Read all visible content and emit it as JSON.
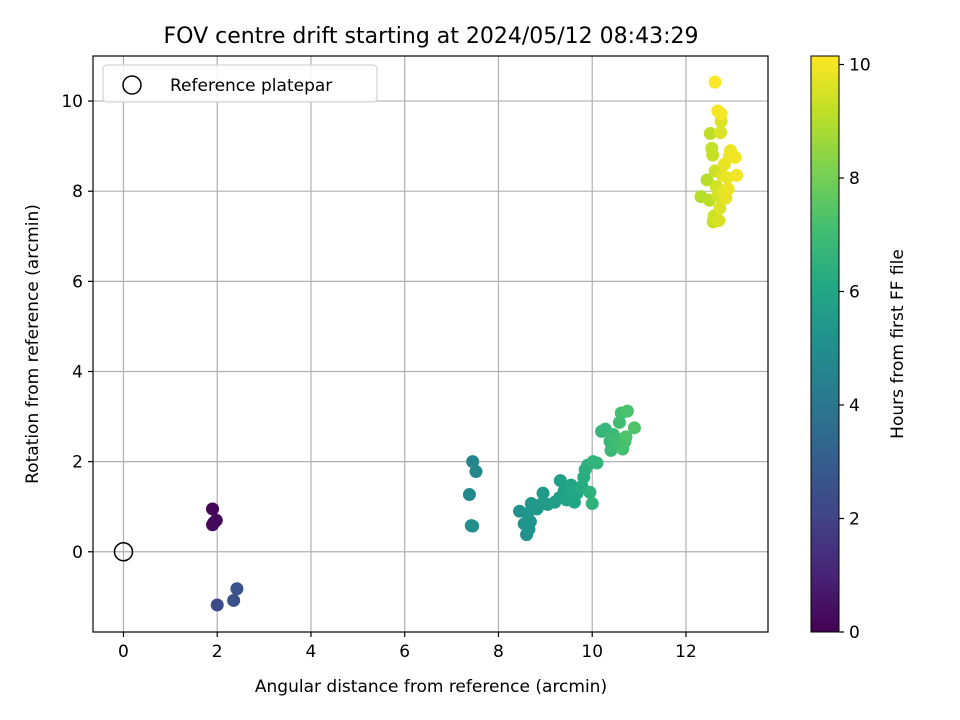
{
  "chart_data": {
    "type": "scatter",
    "title": "FOV centre drift starting at 2024/05/12 08:43:29",
    "xlabel": "Angular distance from reference (arcmin)",
    "ylabel": "Rotation from reference (arcmin)",
    "xlim": [
      -0.65,
      13.75
    ],
    "ylim": [
      -1.78,
      11.0
    ],
    "x_ticks": [
      0,
      2,
      4,
      6,
      8,
      10,
      12
    ],
    "y_ticks": [
      0,
      2,
      4,
      6,
      8,
      10
    ],
    "grid": true,
    "legend": {
      "placement": "top-left",
      "entries": [
        "Reference platepar"
      ]
    },
    "reference": {
      "name": "Reference platepar",
      "x": 0,
      "y": 0
    },
    "colorbar": {
      "label": "Hours from first FF file",
      "range": [
        0,
        10.15
      ],
      "ticks": [
        0,
        2,
        4,
        6,
        8,
        10
      ],
      "colormap": "viridis"
    },
    "points": [
      {
        "x": 1.9,
        "y": 0.95,
        "c": 0.1
      },
      {
        "x": 1.93,
        "y": 0.65,
        "c": 0.15
      },
      {
        "x": 1.98,
        "y": 0.7,
        "c": 0.2
      },
      {
        "x": 1.9,
        "y": 0.6,
        "c": 0.25
      },
      {
        "x": 2.0,
        "y": -1.18,
        "c": 2.3
      },
      {
        "x": 2.35,
        "y": -1.08,
        "c": 2.5
      },
      {
        "x": 2.42,
        "y": -0.82,
        "c": 2.6
      },
      {
        "x": 7.45,
        "y": 2.0,
        "c": 4.6
      },
      {
        "x": 7.52,
        "y": 1.78,
        "c": 4.7
      },
      {
        "x": 7.38,
        "y": 1.27,
        "c": 4.8
      },
      {
        "x": 7.42,
        "y": 0.58,
        "c": 4.9
      },
      {
        "x": 7.45,
        "y": 0.57,
        "c": 5.0
      },
      {
        "x": 8.45,
        "y": 0.9,
        "c": 5.1
      },
      {
        "x": 8.55,
        "y": 0.62,
        "c": 5.15
      },
      {
        "x": 8.6,
        "y": 0.38,
        "c": 5.2
      },
      {
        "x": 8.65,
        "y": 0.5,
        "c": 5.25
      },
      {
        "x": 8.68,
        "y": 0.67,
        "c": 5.3
      },
      {
        "x": 8.62,
        "y": 0.85,
        "c": 5.35
      },
      {
        "x": 8.7,
        "y": 1.07,
        "c": 5.4
      },
      {
        "x": 8.82,
        "y": 0.95,
        "c": 5.45
      },
      {
        "x": 8.9,
        "y": 1.05,
        "c": 5.5
      },
      {
        "x": 8.95,
        "y": 1.3,
        "c": 5.55
      },
      {
        "x": 9.05,
        "y": 1.05,
        "c": 5.6
      },
      {
        "x": 9.2,
        "y": 1.1,
        "c": 5.65
      },
      {
        "x": 9.3,
        "y": 1.2,
        "c": 5.7
      },
      {
        "x": 9.32,
        "y": 1.58,
        "c": 5.75
      },
      {
        "x": 9.4,
        "y": 1.35,
        "c": 5.8
      },
      {
        "x": 9.45,
        "y": 1.15,
        "c": 5.85
      },
      {
        "x": 9.5,
        "y": 1.25,
        "c": 5.9
      },
      {
        "x": 9.55,
        "y": 1.48,
        "c": 5.95
      },
      {
        "x": 9.6,
        "y": 1.22,
        "c": 6.0
      },
      {
        "x": 9.62,
        "y": 1.1,
        "c": 6.05
      },
      {
        "x": 9.68,
        "y": 1.3,
        "c": 6.1
      },
      {
        "x": 9.78,
        "y": 1.45,
        "c": 6.2
      },
      {
        "x": 9.82,
        "y": 1.65,
        "c": 6.3
      },
      {
        "x": 9.85,
        "y": 1.82,
        "c": 6.4
      },
      {
        "x": 9.9,
        "y": 1.92,
        "c": 6.45
      },
      {
        "x": 9.95,
        "y": 1.32,
        "c": 6.5
      },
      {
        "x": 10.0,
        "y": 1.07,
        "c": 6.55
      },
      {
        "x": 10.02,
        "y": 2.0,
        "c": 6.6
      },
      {
        "x": 10.1,
        "y": 1.97,
        "c": 6.65
      },
      {
        "x": 10.2,
        "y": 2.67,
        "c": 6.7
      },
      {
        "x": 10.28,
        "y": 2.72,
        "c": 6.75
      },
      {
        "x": 10.38,
        "y": 2.45,
        "c": 6.8
      },
      {
        "x": 10.4,
        "y": 2.25,
        "c": 6.85
      },
      {
        "x": 10.45,
        "y": 2.6,
        "c": 6.9
      },
      {
        "x": 10.5,
        "y": 2.35,
        "c": 6.95
      },
      {
        "x": 10.55,
        "y": 2.5,
        "c": 7.0
      },
      {
        "x": 10.58,
        "y": 2.87,
        "c": 7.05
      },
      {
        "x": 10.62,
        "y": 3.08,
        "c": 7.1
      },
      {
        "x": 10.65,
        "y": 2.28,
        "c": 7.15
      },
      {
        "x": 10.7,
        "y": 2.45,
        "c": 7.2
      },
      {
        "x": 10.75,
        "y": 3.12,
        "c": 7.25
      },
      {
        "x": 10.72,
        "y": 2.55,
        "c": 7.3
      },
      {
        "x": 10.9,
        "y": 2.75,
        "c": 7.35
      },
      {
        "x": 12.32,
        "y": 7.88,
        "c": 9.0
      },
      {
        "x": 12.45,
        "y": 8.25,
        "c": 9.05
      },
      {
        "x": 12.5,
        "y": 7.8,
        "c": 9.1
      },
      {
        "x": 12.52,
        "y": 9.28,
        "c": 9.15
      },
      {
        "x": 12.55,
        "y": 8.95,
        "c": 9.2
      },
      {
        "x": 12.57,
        "y": 8.8,
        "c": 9.25
      },
      {
        "x": 12.58,
        "y": 7.32,
        "c": 9.3
      },
      {
        "x": 12.6,
        "y": 7.45,
        "c": 9.35
      },
      {
        "x": 12.62,
        "y": 8.45,
        "c": 9.4
      },
      {
        "x": 12.65,
        "y": 8.1,
        "c": 9.45
      },
      {
        "x": 12.68,
        "y": 7.9,
        "c": 9.5
      },
      {
        "x": 12.7,
        "y": 7.35,
        "c": 9.55
      },
      {
        "x": 12.72,
        "y": 7.62,
        "c": 9.6
      },
      {
        "x": 12.74,
        "y": 9.3,
        "c": 9.6
      },
      {
        "x": 12.75,
        "y": 9.55,
        "c": 9.65
      },
      {
        "x": 12.78,
        "y": 8.35,
        "c": 9.7
      },
      {
        "x": 12.8,
        "y": 8.0,
        "c": 9.75
      },
      {
        "x": 12.82,
        "y": 8.6,
        "c": 9.8
      },
      {
        "x": 12.85,
        "y": 7.85,
        "c": 9.82
      },
      {
        "x": 12.88,
        "y": 8.3,
        "c": 9.85
      },
      {
        "x": 12.9,
        "y": 8.05,
        "c": 9.88
      },
      {
        "x": 12.93,
        "y": 8.78,
        "c": 9.9
      },
      {
        "x": 12.95,
        "y": 8.9,
        "c": 9.92
      },
      {
        "x": 13.05,
        "y": 8.75,
        "c": 9.95
      },
      {
        "x": 13.08,
        "y": 8.35,
        "c": 9.97
      },
      {
        "x": 12.68,
        "y": 9.78,
        "c": 10.0
      },
      {
        "x": 12.75,
        "y": 9.72,
        "c": 10.02
      },
      {
        "x": 12.62,
        "y": 10.42,
        "c": 10.1
      }
    ]
  }
}
